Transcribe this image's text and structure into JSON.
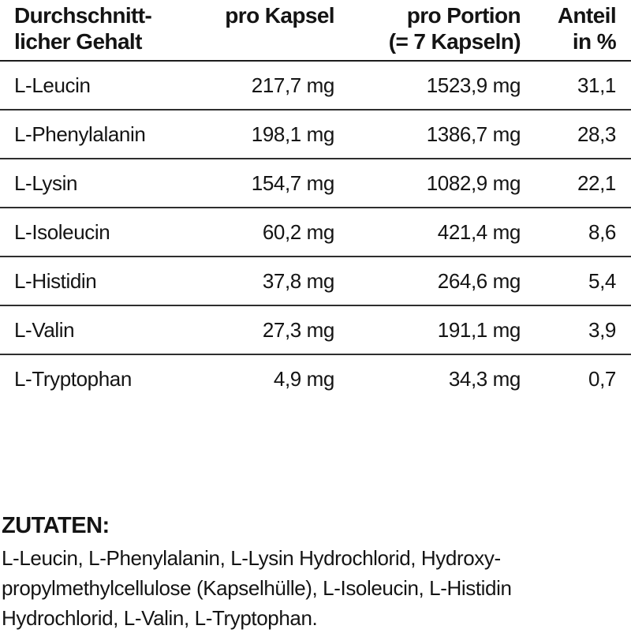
{
  "table": {
    "header": {
      "col1": [
        "Durchschnitt-",
        "licher Gehalt"
      ],
      "col2": [
        "pro Kapsel"
      ],
      "col3": [
        "pro Portion",
        "(= 7 Kapseln)"
      ],
      "col4": [
        "Anteil",
        "in %"
      ]
    },
    "rows": [
      {
        "name": "L-Leucin",
        "per_capsule": "217,7 mg",
        "per_portion": "1523,9 mg",
        "percent": "31,1"
      },
      {
        "name": "L-Phenylalanin",
        "per_capsule": "198,1 mg",
        "per_portion": "1386,7 mg",
        "percent": "28,3"
      },
      {
        "name": "L-Lysin",
        "per_capsule": "154,7 mg",
        "per_portion": "1082,9 mg",
        "percent": "22,1"
      },
      {
        "name": "L-Isoleucin",
        "per_capsule": "60,2 mg",
        "per_portion": "421,4 mg",
        "percent": "8,6"
      },
      {
        "name": "L-Histidin",
        "per_capsule": "37,8 mg",
        "per_portion": "264,6 mg",
        "percent": "5,4"
      },
      {
        "name": "L-Valin",
        "per_capsule": "27,3 mg",
        "per_portion": "191,1 mg",
        "percent": "3,9"
      },
      {
        "name": "L-Tryptophan",
        "per_capsule": "4,9 mg",
        "per_portion": "34,3 mg",
        "percent": "0,7"
      }
    ]
  },
  "ingredients": {
    "title": "ZUTATEN:",
    "lines": [
      "L-Leucin, L-Phenylalanin, L-Lysin Hydrochlorid, Hydroxy-",
      "propylmethylcellulose (Kapselhülle), L-Isoleucin, L-Histidin",
      "Hydrochlorid, L-Valin, L-Tryptophan."
    ]
  },
  "colors": {
    "background": "#ffffff",
    "text": "#141414",
    "rule": "#2e2e2e"
  }
}
